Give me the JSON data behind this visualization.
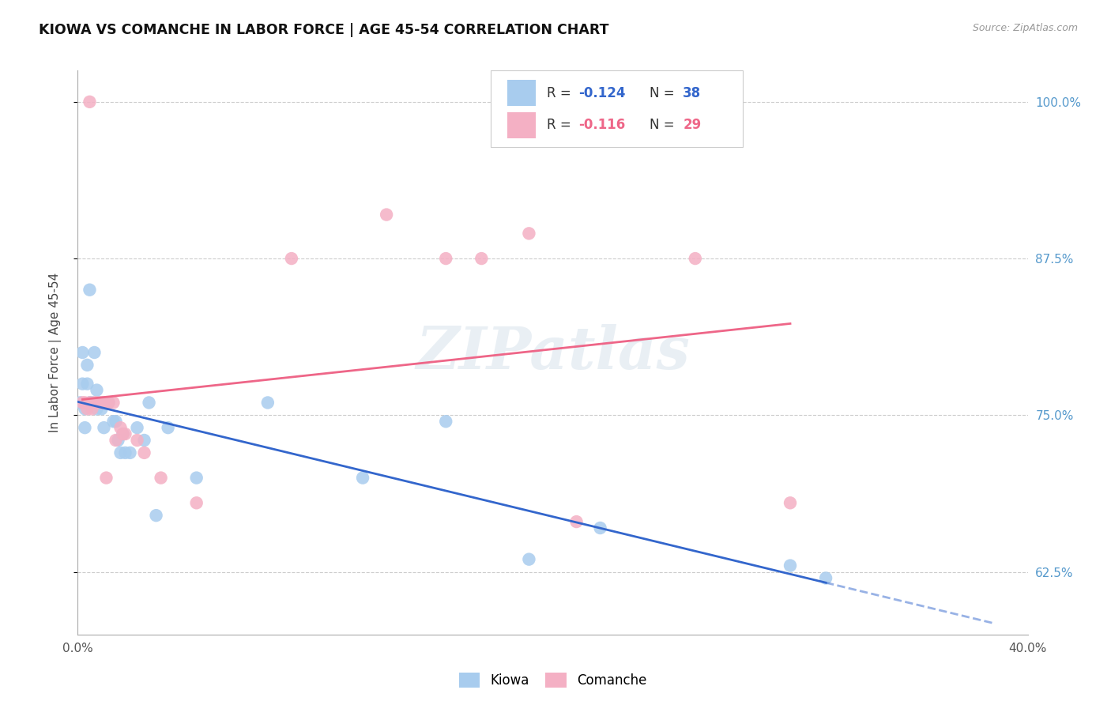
{
  "title": "KIOWA VS COMANCHE IN LABOR FORCE | AGE 45-54 CORRELATION CHART",
  "source": "Source: ZipAtlas.com",
  "ylabel": "In Labor Force | Age 45-54",
  "xlim": [
    0.0,
    0.4
  ],
  "ylim": [
    0.575,
    1.025
  ],
  "kiowa_R": "-0.124",
  "kiowa_N": "38",
  "comanche_R": "-0.116",
  "comanche_N": "29",
  "kiowa_color": "#A8CCEE",
  "comanche_color": "#F4B0C4",
  "kiowa_line_color": "#3366CC",
  "comanche_line_color": "#EE6688",
  "background_color": "#FFFFFF",
  "grid_color": "#CCCCCC",
  "watermark": "ZIPatlas",
  "kiowa_x": [
    0.001,
    0.002,
    0.002,
    0.003,
    0.003,
    0.004,
    0.004,
    0.005,
    0.005,
    0.006,
    0.007,
    0.008,
    0.008,
    0.009,
    0.01,
    0.011,
    0.012,
    0.013,
    0.015,
    0.016,
    0.017,
    0.018,
    0.019,
    0.02,
    0.022,
    0.025,
    0.028,
    0.03,
    0.033,
    0.038,
    0.05,
    0.08,
    0.12,
    0.155,
    0.19,
    0.22,
    0.3,
    0.315
  ],
  "kiowa_y": [
    0.76,
    0.775,
    0.8,
    0.755,
    0.74,
    0.79,
    0.775,
    0.85,
    0.76,
    0.76,
    0.8,
    0.755,
    0.77,
    0.76,
    0.755,
    0.74,
    0.76,
    0.76,
    0.745,
    0.745,
    0.73,
    0.72,
    0.735,
    0.72,
    0.72,
    0.74,
    0.73,
    0.76,
    0.67,
    0.74,
    0.7,
    0.76,
    0.7,
    0.745,
    0.635,
    0.66,
    0.63,
    0.62
  ],
  "comanche_x": [
    0.002,
    0.003,
    0.004,
    0.005,
    0.006,
    0.007,
    0.008,
    0.01,
    0.011,
    0.013,
    0.015,
    0.016,
    0.018,
    0.019,
    0.02,
    0.025,
    0.028,
    0.035,
    0.05,
    0.09,
    0.13,
    0.155,
    0.17,
    0.19,
    0.21,
    0.26,
    0.3,
    0.005,
    0.012
  ],
  "comanche_y": [
    0.76,
    0.76,
    0.755,
    0.76,
    0.755,
    0.76,
    0.76,
    0.76,
    0.76,
    0.76,
    0.76,
    0.73,
    0.74,
    0.735,
    0.735,
    0.73,
    0.72,
    0.7,
    0.68,
    0.875,
    0.91,
    0.875,
    0.875,
    0.895,
    0.665,
    0.875,
    0.68,
    1.0,
    0.7
  ],
  "xtick_positions": [
    0.0,
    0.08,
    0.16,
    0.24,
    0.32,
    0.4
  ],
  "xtick_labels": [
    "0.0%",
    "",
    "",
    "",
    "",
    "40.0%"
  ],
  "ytick_positions": [
    0.625,
    0.75,
    0.875,
    1.0
  ],
  "ytick_labels": [
    "62.5%",
    "75.0%",
    "87.5%",
    "100.0%"
  ]
}
